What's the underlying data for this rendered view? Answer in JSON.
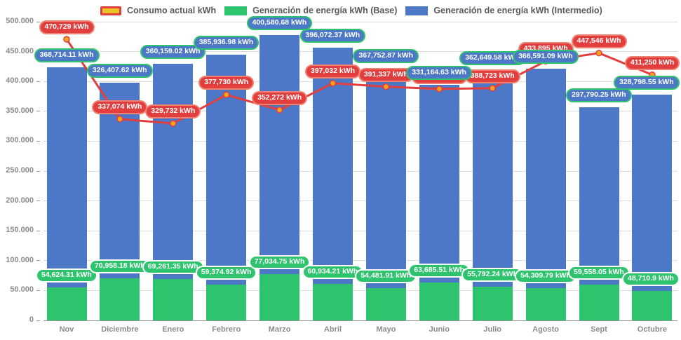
{
  "colors": {
    "consumo_line": "#e23e3e",
    "consumo_label_border": "#ef8272",
    "consumo_marker_fill": "#f5a31f",
    "legend_consumo_fill": "#eac228",
    "base_green": "#2ec46d",
    "intermedio_blue": "#4d78c8",
    "axis_text": "#8c8c8c",
    "legend_text": "#595959"
  },
  "legend": {
    "items": [
      {
        "label": "Consumo actual kWh"
      },
      {
        "label": "Generación de energía kWh (Base)"
      },
      {
        "label": "Generación de energía kWh (Intermedio)"
      }
    ]
  },
  "chart_data": {
    "type": "combo-stacked-bar-line",
    "categories": [
      "Nov",
      "Diciembre",
      "Enero",
      "Febrero",
      "Marzo",
      "Abril",
      "Mayo",
      "Junio",
      "Julio",
      "Agosto",
      "Sept",
      "Octubre"
    ],
    "ylim": [
      0,
      500000
    ],
    "grid": true,
    "legend_position": "top",
    "y_ticks": [
      "500.000",
      "450.000",
      "400.000",
      "350.000",
      "300.000",
      "250.000",
      "200.000",
      "150.000",
      "100.000",
      "50.000",
      "0"
    ],
    "y_tick_values": [
      500000,
      450000,
      400000,
      350000,
      300000,
      250000,
      200000,
      150000,
      100000,
      50000,
      0
    ],
    "series": [
      {
        "name": "Consumo actual kWh",
        "type": "line",
        "values": [
          470729,
          337074,
          329732,
          377730,
          352272,
          397032,
          391337,
          387424,
          388723,
          433895,
          447546,
          411250
        ],
        "labels": [
          "470,729 kWh",
          "337,074 kWh",
          "329,732 kWh",
          "377,730 kWh",
          "352,272 kWh",
          "397,032 kWh",
          "391,337 kWh",
          "387,424 kWh",
          "388,723 kWh",
          "433,895 kWh",
          "447,546 kWh",
          "411,250 kWh"
        ]
      },
      {
        "name": "Generación de energía kWh (Base)",
        "type": "bar",
        "stacked": true,
        "values": [
          54624.31,
          70958.18,
          69261.35,
          59374.92,
          77034.75,
          60934.21,
          54481.91,
          63685.51,
          55792.24,
          54309.79,
          59558.05,
          48710.9
        ],
        "labels": [
          "54,624.31 kWh",
          "70,958.18 kWh",
          "69,261.35 kWh",
          "59,374.92 kWh",
          "77,034.75 kWh",
          "60,934.21 kWh",
          "54,481.91 kWh",
          "63,685.51 kWh",
          "55,792.24 kWh",
          "54,309.79 kWh",
          "59,558.05 kWh",
          "48,710.9 kWh"
        ]
      },
      {
        "name": "Generación de energía kWh (Intermedio)",
        "type": "bar",
        "stacked": true,
        "values": [
          368714.11,
          326407.62,
          360159.02,
          385936.98,
          400580.68,
          396072.37,
          367752.87,
          331164.63,
          362649.58,
          366591.09,
          297790.25,
          328798.55
        ],
        "labels": [
          "368,714.11 kWh",
          "326,407.62 kWh",
          "360,159.02 kWh",
          "385,936.98 kWh",
          "400,580.68 kWh",
          "396,072.37 kWh",
          "367,752.87 kWh",
          "331,164.63 kWh",
          "362,649.58 kWh",
          "366,591.09 kWh",
          "297,790.25 kWh",
          "328,798.55 kWh"
        ]
      }
    ]
  }
}
